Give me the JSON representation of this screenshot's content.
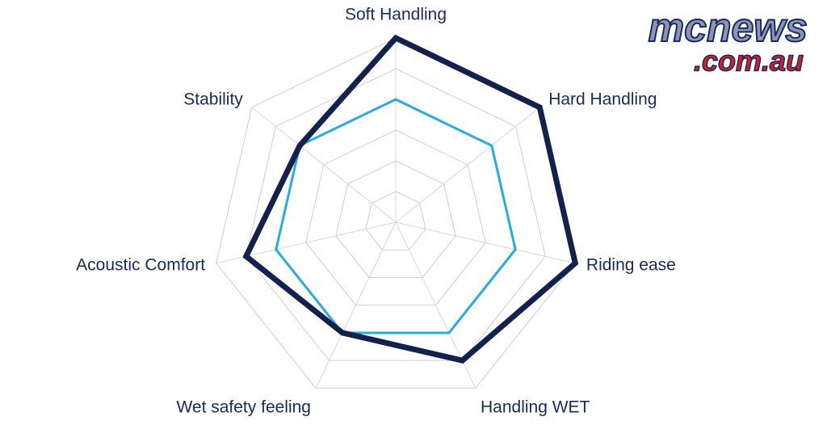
{
  "chart_data": {
    "type": "radar",
    "categories": [
      "Soft Handling",
      "Hard Handling",
      "Riding ease",
      "Handling WET",
      "Wet safety feeling",
      "Acoustic Comfort",
      "Stability"
    ],
    "series": [
      {
        "color": "#29abe2",
        "values": [
          4,
          4,
          4,
          4,
          4,
          4,
          4
        ]
      },
      {
        "color": "#14214d",
        "values": [
          6,
          6,
          6,
          5,
          4,
          5,
          4
        ]
      }
    ],
    "ylim": [
      0,
      6
    ],
    "yticks": [
      1,
      2,
      3,
      4,
      5,
      6
    ],
    "grid": true
  },
  "logo": {
    "top": "mcnews",
    "bottom": ".com.au"
  }
}
